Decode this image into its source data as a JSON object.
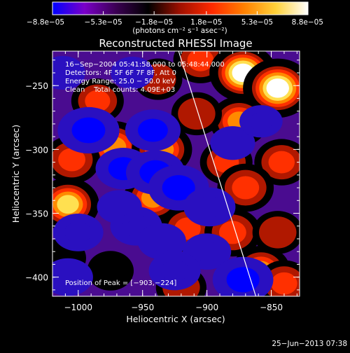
{
  "chart_data": {
    "type": "heatmap",
    "title": "Reconstructed RHESSI Image",
    "xlabel": "Heliocentric X (arcsec)",
    "ylabel": "Heliocentric Y (arcsec)",
    "xlim": [
      -1020,
      -828
    ],
    "ylim": [
      -415,
      -223
    ],
    "x_ticks": [
      -1000,
      -950,
      -900,
      -850
    ],
    "x_tick_labels": [
      "−1000",
      "−950",
      "−900",
      "−850"
    ],
    "y_ticks": [
      -250,
      -300,
      -350,
      -400
    ],
    "y_tick_labels": [
      "−250",
      "−300",
      "−350",
      "−400"
    ],
    "colorbar": {
      "min": -8.8e-05,
      "max": 8.8e-05,
      "tick_values": [
        -8.8e-05,
        -5.3e-05,
        -1.8e-05,
        1.8e-05,
        5.3e-05,
        8.8e-05
      ],
      "tick_labels": [
        "−8.8e−05",
        "−5.3e−05",
        "−1.8e−05",
        "1.8e−05",
        "5.3e−05",
        "8.8e−05"
      ],
      "units": "(photons cm⁻² s⁻¹ asec⁻²)",
      "colormap": [
        "#0000ff",
        "#7a00c8",
        "#3a0052",
        "#000000",
        "#a01000",
        "#ff2a00",
        "#ff8000",
        "#ffd23a",
        "#ffffff"
      ]
    },
    "annotations": [
      "16−Sep−2004 05:41:58.000 to 05:48:44.000",
      "Detectors: 4F 5F 6F 7F 8F, Att 0",
      "Energy Range: 25.0 − 50.0 keV",
      "Clean    Total counts: 4.09E+03"
    ],
    "peak_label": "Position of Peak = [−903,−224]",
    "peak": [
      -903,
      -224
    ],
    "limb_line": [
      [
        -922,
        -223
      ],
      [
        -862,
        -415
      ]
    ],
    "field_blobs": [
      {
        "x": -972,
        "y": -298,
        "value": 6.5e-05
      },
      {
        "x": -1005,
        "y": -308,
        "value": 5.5e-05
      },
      {
        "x": -1008,
        "y": -343,
        "value": 7e-05
      },
      {
        "x": -985,
        "y": -262,
        "value": 4.5e-05
      },
      {
        "x": -938,
        "y": -245,
        "value": 3.5e-05
      },
      {
        "x": -905,
        "y": -230,
        "value": 5e-05
      },
      {
        "x": -872,
        "y": -240,
        "value": 8.2e-05
      },
      {
        "x": -845,
        "y": -252,
        "value": 8.8e-05
      },
      {
        "x": -875,
        "y": -278,
        "value": 6e-05
      },
      {
        "x": -935,
        "y": -300,
        "value": 6.5e-05
      },
      {
        "x": -908,
        "y": -272,
        "value": 4e-05
      },
      {
        "x": -842,
        "y": -310,
        "value": 5e-05
      },
      {
        "x": -885,
        "y": -310,
        "value": 4.5e-05
      },
      {
        "x": -870,
        "y": -330,
        "value": 5.5e-05
      },
      {
        "x": -942,
        "y": -338,
        "value": 6e-05
      },
      {
        "x": -915,
        "y": -362,
        "value": 5e-05
      },
      {
        "x": -880,
        "y": -365,
        "value": 5.5e-05
      },
      {
        "x": -858,
        "y": -395,
        "value": 6e-05
      },
      {
        "x": -840,
        "y": -405,
        "value": 5e-05
      },
      {
        "x": -920,
        "y": -408,
        "value": 4e-05
      },
      {
        "x": -975,
        "y": -395,
        "value": 3e-05
      },
      {
        "x": -1012,
        "y": -385,
        "value": 3e-05
      },
      {
        "x": -845,
        "y": -365,
        "value": 4e-05
      },
      {
        "x": -992,
        "y": -285,
        "value": -8.8e-05
      },
      {
        "x": -965,
        "y": -315,
        "value": -7e-05
      },
      {
        "x": -940,
        "y": -318,
        "value": -8e-05
      },
      {
        "x": -942,
        "y": -285,
        "value": -7e-05
      },
      {
        "x": -922,
        "y": -330,
        "value": -8.5e-05
      },
      {
        "x": -955,
        "y": -360,
        "value": -6e-05
      },
      {
        "x": -935,
        "y": -372,
        "value": -5e-05
      },
      {
        "x": -900,
        "y": -380,
        "value": -5e-05
      },
      {
        "x": -898,
        "y": -345,
        "value": -6e-05
      },
      {
        "x": -925,
        "y": -395,
        "value": -6e-05
      },
      {
        "x": -872,
        "y": -402,
        "value": -8.5e-05
      },
      {
        "x": -1000,
        "y": -365,
        "value": -5.5e-05
      },
      {
        "x": -1008,
        "y": -400,
        "value": -5.5e-05
      },
      {
        "x": -968,
        "y": -345,
        "value": -4e-05
      },
      {
        "x": -880,
        "y": -295,
        "value": -4e-05
      },
      {
        "x": -858,
        "y": -278,
        "value": -3.5e-05
      },
      {
        "x": -958,
        "y": -240,
        "value": -3.5e-05
      },
      {
        "x": -1012,
        "y": -240,
        "value": -4e-05
      }
    ]
  },
  "footer": {
    "timestamp": "25−Jun−2013 07:38"
  }
}
